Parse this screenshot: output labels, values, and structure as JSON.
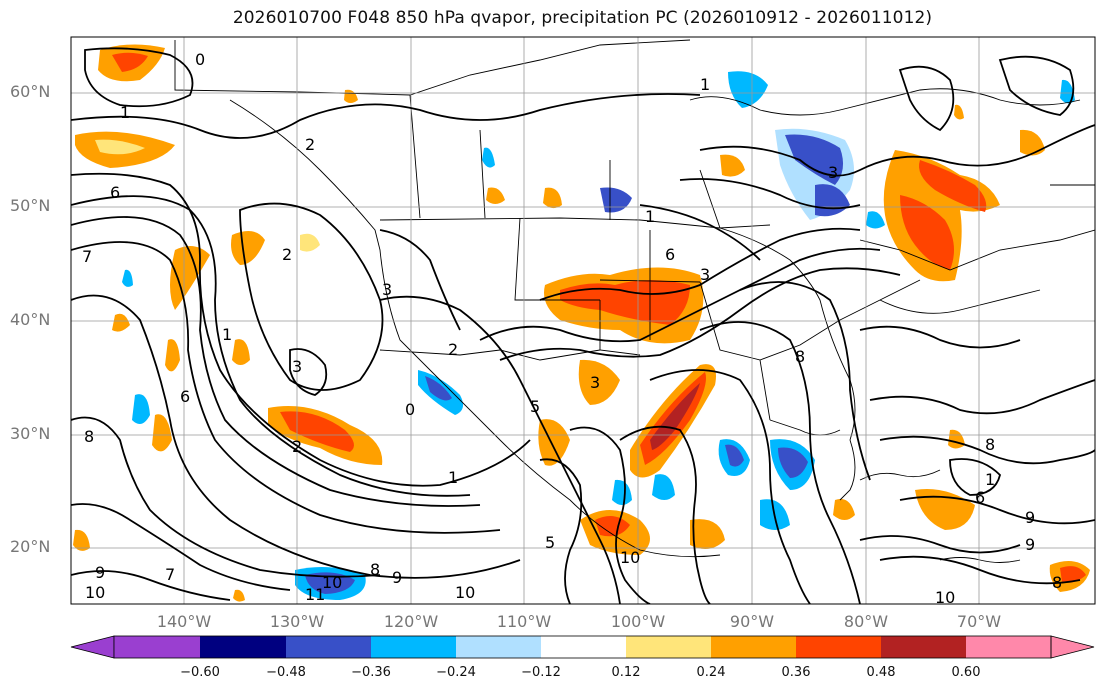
{
  "title": "2026010700 F048 850 hPa qvapor, precipitation PC (2026010912 - 2026011012)",
  "latitude_labels": [
    "60°N",
    "50°N",
    "40°N",
    "30°N",
    "20°N"
  ],
  "longitude_labels": [
    "140°W",
    "130°W",
    "120°W",
    "110°W",
    "100°W",
    "90°W",
    "80°W",
    "70°W"
  ],
  "contour_labels": [
    "0",
    "1",
    "2",
    "6",
    "7",
    "2",
    "1",
    "3",
    "2",
    "1",
    "0",
    "3",
    "6",
    "8",
    "2",
    "1",
    "5",
    "1",
    "6",
    "3",
    "3",
    "3",
    "8",
    "8",
    "7",
    "9",
    "10",
    "11",
    "10",
    "8",
    "9",
    "10",
    "10",
    "10",
    "9",
    "9",
    "8",
    "6",
    "5",
    "1"
  ],
  "colorbar": {
    "ticks": [
      "−0.60",
      "−0.48",
      "−0.36",
      "−0.24",
      "−0.12",
      "0.12",
      "0.24",
      "0.36",
      "0.48",
      "0.60"
    ],
    "colors": [
      "#9a3fd0",
      "#000080",
      "#3850c8",
      "#00b8ff",
      "#b0e0ff",
      "#ffffff",
      "#ffe57a",
      "#ffa000",
      "#ff4400",
      "#b22222",
      "#ff88aa"
    ]
  },
  "colors": {
    "contour": "#000000",
    "grid": "#999999",
    "positive_weak": "#ffe57a",
    "positive_mid": "#ffa000",
    "positive_strong": "#ff4400",
    "negative_weak": "#b0e0ff",
    "negative_mid": "#00b8ff",
    "negative_strong": "#3850c8"
  }
}
